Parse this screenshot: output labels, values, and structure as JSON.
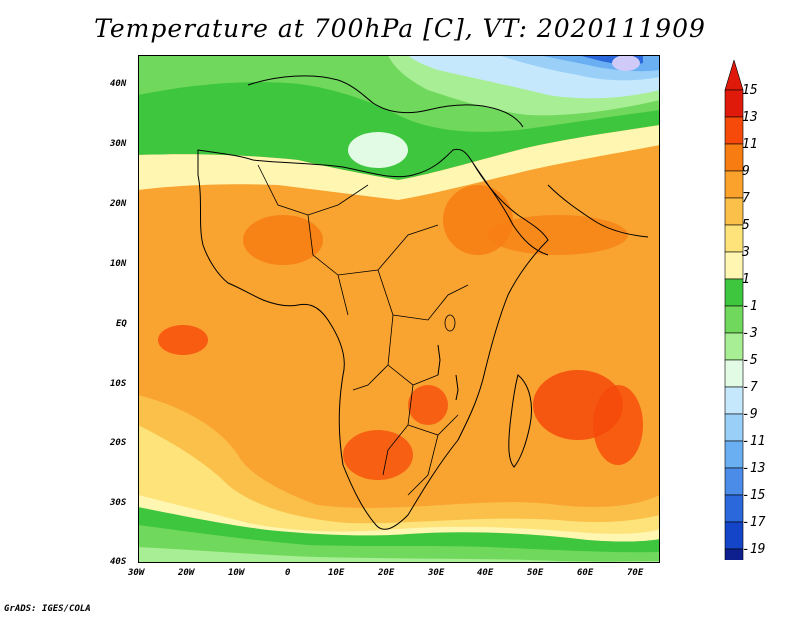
{
  "title": "Temperature at 700hPa [C], VT: 2020111909",
  "credit": "GrADS: IGES/COLA",
  "map": {
    "lon_range": [
      -30,
      75
    ],
    "lat_range": [
      -40,
      45
    ],
    "x_ticks": [
      "30W",
      "20W",
      "10W",
      "0",
      "10E",
      "20E",
      "30E",
      "40E",
      "50E",
      "60E",
      "70E"
    ],
    "y_ticks": [
      "40N",
      "30N",
      "20N",
      "10N",
      "EQ",
      "10S",
      "20S",
      "30S",
      "40S"
    ]
  },
  "colorbar": {
    "labels": [
      "15",
      "13",
      "11",
      "9",
      "7",
      "5",
      "3",
      "1",
      "-1",
      "-3",
      "-5",
      "-7",
      "-9",
      "-11",
      "-13",
      "-15",
      "-17",
      "-19"
    ],
    "colors": [
      "#e01a0a",
      "#f64a0a",
      "#f77d12",
      "#fba22c",
      "#fbc04a",
      "#fde37a",
      "#fff6b2",
      "#3ec63e",
      "#70d85c",
      "#a8ee94",
      "#e2fbe4",
      "#c6e8fc",
      "#9ad0f8",
      "#6aaff2",
      "#4a8ce8",
      "#2a68dc",
      "#1444c8",
      "#0e1f8e"
    ],
    "top_arrow_color": "#e01a0a",
    "bottom_arrow_color": "#cfcaf8"
  }
}
